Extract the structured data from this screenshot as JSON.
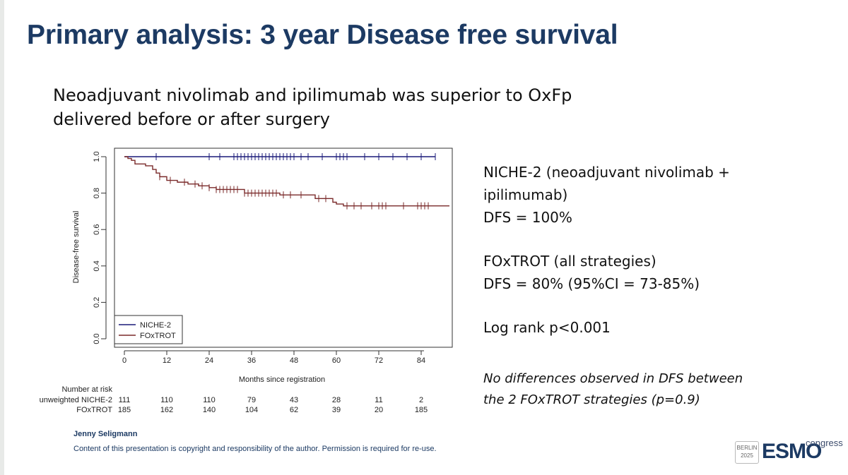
{
  "slide": {
    "title": "Primary analysis: 3 year Disease free survival",
    "subtitle_line1": "Neoadjuvant nivolimab and ipilimumab was superior to OxFp",
    "subtitle_line2": "delivered before or after surgery"
  },
  "chart_data": {
    "type": "line",
    "chart_subtype": "kaplan-meier",
    "xlabel": "Months since registration",
    "ylabel": "Disease-free survival",
    "xlim": [
      0,
      88
    ],
    "ylim": [
      0,
      1
    ],
    "x_ticks": [
      "0",
      "12",
      "24",
      "36",
      "48",
      "60",
      "72",
      "84"
    ],
    "y_ticks": [
      "0.0",
      "0.2",
      "0.4",
      "0.6",
      "0.8",
      "1.0"
    ],
    "legend_position": "bottom-left",
    "series": [
      {
        "name": "NICHE-2",
        "color": "#1a1a78",
        "steps": [
          [
            0,
            1.0
          ],
          [
            88,
            1.0
          ]
        ],
        "censor_times": [
          9,
          24,
          27,
          31,
          32,
          33,
          34,
          35,
          36,
          37,
          38,
          39,
          40,
          41,
          42,
          43,
          44,
          45,
          46,
          47,
          48,
          50,
          52,
          56,
          60,
          61,
          62,
          63,
          68,
          72,
          76,
          80,
          84,
          88
        ]
      },
      {
        "name": "FOxTROT",
        "color": "#7a2a2a",
        "steps": [
          [
            0,
            1.0
          ],
          [
            1,
            0.99
          ],
          [
            2,
            0.98
          ],
          [
            3,
            0.96
          ],
          [
            6,
            0.95
          ],
          [
            8,
            0.93
          ],
          [
            9,
            0.91
          ],
          [
            10,
            0.89
          ],
          [
            12,
            0.87
          ],
          [
            15,
            0.86
          ],
          [
            18,
            0.85
          ],
          [
            21,
            0.84
          ],
          [
            24,
            0.83
          ],
          [
            26,
            0.82
          ],
          [
            34,
            0.81
          ],
          [
            34,
            0.8
          ],
          [
            44,
            0.79
          ],
          [
            45,
            0.79
          ],
          [
            54,
            0.77
          ],
          [
            59,
            0.75
          ],
          [
            60,
            0.74
          ],
          [
            62,
            0.73
          ],
          [
            64,
            0.73
          ],
          [
            92,
            0.73
          ]
        ],
        "censor_times": [
          10,
          13,
          17,
          20,
          22,
          24,
          26,
          27,
          28,
          29,
          30,
          31,
          32,
          34,
          35,
          36,
          37,
          38,
          39,
          40,
          41,
          42,
          43,
          45,
          47,
          50,
          55,
          57,
          63,
          65,
          67,
          70,
          72,
          73,
          74,
          79,
          83,
          84,
          85,
          86
        ]
      }
    ],
    "risk_table": {
      "header": "Number at risk",
      "rows": [
        {
          "label": "unweighted NICHE-2",
          "values": [
            "111",
            "110",
            "110",
            "79",
            "43",
            "28",
            "11",
            "2"
          ]
        },
        {
          "label": "FOxTROT",
          "values": [
            "185",
            "162",
            "140",
            "104",
            "62",
            "39",
            "20",
            "185"
          ]
        }
      ]
    }
  },
  "panel": {
    "niche_line1": "NICHE-2 (neoadjuvant nivolimab +",
    "niche_line2": "ipilimumab)",
    "niche_dfs": "DFS = 100%",
    "foxtrot_line1": "FOxTROT (all strategies)",
    "foxtrot_dfs": "DFS = 80% (95%CI = 73-85%)",
    "logrank": "Log rank p<0.001",
    "note_line1": "No differences observed in DFS between",
    "note_line2": "the 2 FOxTROT strategies (p=0.9)"
  },
  "footer": {
    "author": "Jenny Seligmann",
    "copyright": "Content of this presentation is copyright and responsibility of the author. Permission is required for re-use.",
    "logo_location_1": "BERLIN",
    "logo_location_2": "2025",
    "logo_brand": "ESMO",
    "logo_suffix": "congress"
  }
}
